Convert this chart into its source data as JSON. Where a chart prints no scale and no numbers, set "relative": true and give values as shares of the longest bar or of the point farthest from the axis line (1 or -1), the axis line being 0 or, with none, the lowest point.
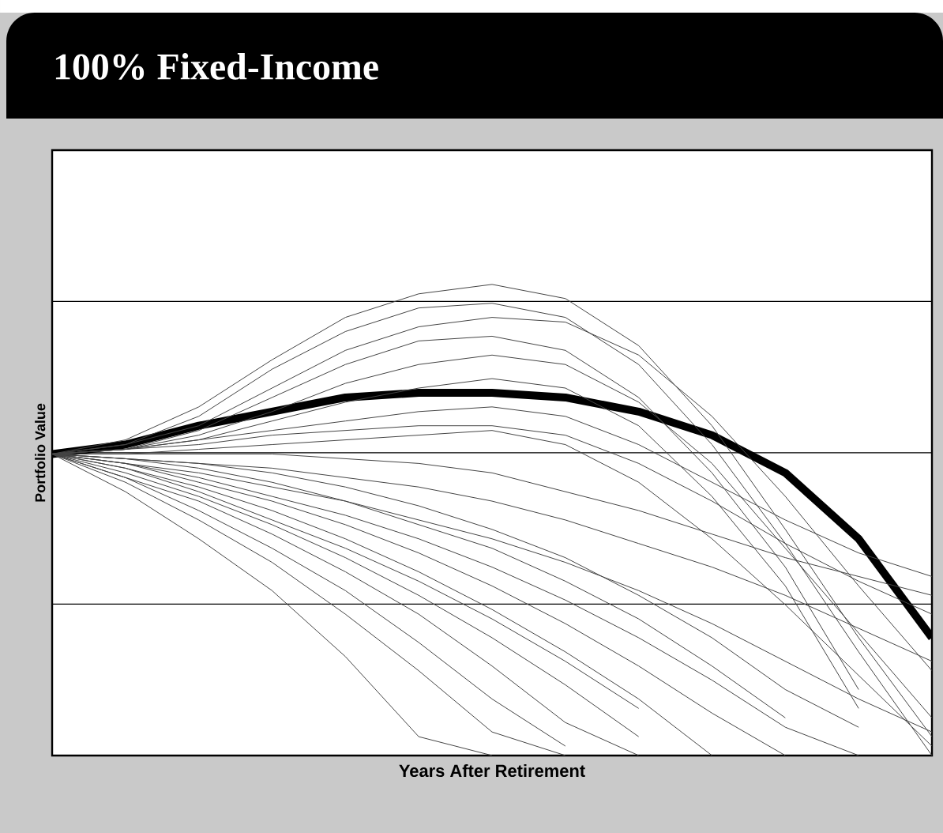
{
  "chart_data": {
    "type": "line",
    "title": "100% Fixed-Income",
    "xlabel": "Years After Retirement",
    "ylabel": "Portfolio Value",
    "relative": true,
    "grid": "y",
    "categories": [
      null,
      null,
      null,
      null,
      null,
      null,
      null,
      null,
      null,
      null,
      null,
      null,
      null
    ],
    "series": [
      {
        "color": "#000000",
        "values": [
          0.64,
          0.66,
          0.7,
          0.73,
          0.76,
          0.77,
          0.77,
          0.76,
          0.73,
          0.68,
          0.6,
          0.46,
          0.25
        ]
      },
      {
        "color": "#444444",
        "values": [
          0.64,
          0.67,
          0.74,
          0.84,
          0.93,
          0.98,
          1.0,
          0.97,
          0.87,
          0.7,
          0.48,
          0.25,
          0.04
        ]
      },
      {
        "color": "#444444",
        "values": [
          0.64,
          0.66,
          0.72,
          0.82,
          0.9,
          0.95,
          0.96,
          0.93,
          0.83,
          0.66,
          0.45,
          0.22,
          0.0
        ]
      },
      {
        "color": "#444444",
        "values": [
          0.64,
          0.66,
          0.7,
          0.78,
          0.86,
          0.91,
          0.93,
          0.92,
          0.85,
          0.72,
          0.55,
          0.36,
          0.18
        ]
      },
      {
        "color": "#444444",
        "values": [
          0.64,
          0.65,
          0.69,
          0.76,
          0.83,
          0.88,
          0.89,
          0.86,
          0.76,
          0.6,
          0.4,
          0.14,
          null
        ]
      },
      {
        "color": "#444444",
        "values": [
          0.64,
          0.65,
          0.68,
          0.73,
          0.79,
          0.83,
          0.85,
          0.83,
          0.75,
          0.62,
          0.44,
          0.26,
          0.08
        ]
      },
      {
        "color": "#444444",
        "values": [
          0.64,
          0.65,
          0.67,
          0.71,
          0.75,
          0.78,
          0.8,
          0.78,
          0.7,
          0.55,
          0.36,
          0.1,
          null
        ]
      },
      {
        "color": "#444444",
        "values": [
          0.64,
          0.65,
          0.67,
          0.69,
          0.71,
          0.73,
          0.74,
          0.72,
          0.66,
          0.58,
          0.5,
          0.43,
          0.38
        ]
      },
      {
        "color": "#444444",
        "values": [
          0.64,
          0.65,
          0.66,
          0.68,
          0.69,
          0.7,
          0.7,
          0.68,
          0.62,
          0.54,
          0.45,
          0.37,
          0.3
        ]
      },
      {
        "color": "#444444",
        "values": [
          0.64,
          0.64,
          0.65,
          0.66,
          0.67,
          0.68,
          0.69,
          0.66,
          0.58,
          0.46,
          0.32,
          0.17,
          0.02
        ]
      },
      {
        "color": "#444444",
        "values": [
          0.64,
          0.64,
          0.64,
          0.64,
          0.63,
          0.62,
          0.6,
          0.56,
          0.52,
          0.47,
          0.42,
          0.38,
          0.34
        ]
      },
      {
        "color": "#444444",
        "values": [
          0.64,
          0.63,
          0.62,
          0.61,
          0.59,
          0.57,
          0.54,
          0.5,
          0.45,
          0.4,
          0.34,
          0.27,
          0.2
        ]
      },
      {
        "color": "#444444",
        "values": [
          0.64,
          0.62,
          0.6,
          0.57,
          0.54,
          0.5,
          0.46,
          0.41,
          0.35,
          0.28,
          0.2,
          0.12,
          0.05
        ]
      },
      {
        "color": "#444444",
        "values": [
          0.64,
          0.62,
          0.59,
          0.55,
          0.51,
          0.46,
          0.4,
          0.33,
          0.25,
          0.16,
          0.06,
          0.0,
          null
        ]
      },
      {
        "color": "#444444",
        "values": [
          0.64,
          0.61,
          0.57,
          0.52,
          0.46,
          0.39,
          0.31,
          0.22,
          0.12,
          0.0,
          null,
          null,
          null
        ]
      },
      {
        "color": "#444444",
        "values": [
          0.64,
          0.6,
          0.55,
          0.49,
          0.42,
          0.34,
          0.25,
          0.15,
          0.04,
          null,
          null,
          null,
          null
        ]
      },
      {
        "color": "#444444",
        "values": [
          0.64,
          0.56,
          0.46,
          0.35,
          0.21,
          0.04,
          0.0,
          null,
          null,
          null,
          null,
          null,
          null
        ]
      },
      {
        "color": "#444444",
        "values": [
          0.64,
          0.58,
          0.5,
          0.41,
          0.3,
          0.18,
          0.05,
          0.0,
          null,
          null,
          null,
          null,
          null
        ]
      },
      {
        "color": "#444444",
        "values": [
          0.64,
          0.59,
          0.52,
          0.44,
          0.35,
          0.24,
          0.12,
          0.02,
          null,
          null,
          null,
          null,
          null
        ]
      },
      {
        "color": "#444444",
        "values": [
          0.64,
          0.59,
          0.54,
          0.47,
          0.39,
          0.3,
          0.19,
          0.07,
          0.0,
          null,
          null,
          null,
          null
        ]
      },
      {
        "color": "#444444",
        "values": [
          0.64,
          0.61,
          0.56,
          0.5,
          0.44,
          0.37,
          0.29,
          0.2,
          0.1,
          null,
          null,
          null,
          null
        ]
      },
      {
        "color": "#444444",
        "values": [
          0.64,
          0.62,
          0.58,
          0.54,
          0.49,
          0.43,
          0.36,
          0.28,
          0.19,
          0.09,
          0.0,
          null,
          null
        ]
      },
      {
        "color": "#444444",
        "values": [
          0.64,
          0.63,
          0.61,
          0.58,
          0.54,
          0.49,
          0.44,
          0.37,
          0.29,
          0.19,
          0.08,
          null,
          null
        ]
      },
      {
        "color": "#444444",
        "values": [
          0.64,
          0.63,
          0.62,
          0.6,
          0.57,
          0.53,
          0.48,
          0.42,
          0.34,
          0.25,
          0.14,
          0.06,
          null
        ]
      }
    ]
  }
}
